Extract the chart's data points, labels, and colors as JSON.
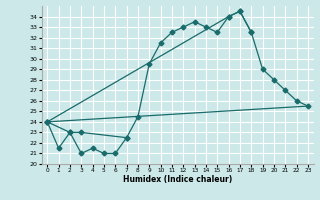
{
  "xlabel": "Humidex (Indice chaleur)",
  "bg_color": "#cce8e8",
  "grid_color": "#ffffff",
  "line_color": "#1a6b6b",
  "xlim": [
    -0.5,
    23.5
  ],
  "ylim": [
    20,
    35
  ],
  "yticks": [
    20,
    21,
    22,
    23,
    24,
    25,
    26,
    27,
    28,
    29,
    30,
    31,
    32,
    33,
    34
  ],
  "xticks": [
    0,
    1,
    2,
    3,
    4,
    5,
    6,
    7,
    8,
    9,
    10,
    11,
    12,
    13,
    14,
    15,
    16,
    17,
    18,
    19,
    20,
    21,
    22,
    23
  ],
  "line1_x": [
    0,
    1,
    2,
    3,
    4,
    5,
    6,
    7
  ],
  "line1_y": [
    24.0,
    21.5,
    23.0,
    21.0,
    21.5,
    21.0,
    21.0,
    22.5
  ],
  "line2_x": [
    0,
    2,
    3,
    7,
    8,
    9,
    10,
    11,
    12,
    13,
    14,
    15,
    16,
    17,
    18
  ],
  "line2_y": [
    24.0,
    23.0,
    23.0,
    22.5,
    24.5,
    29.5,
    31.5,
    32.5,
    33.0,
    33.5,
    33.0,
    32.5,
    34.0,
    34.5,
    32.5
  ],
  "line3_x": [
    0,
    16,
    17,
    18,
    19,
    20,
    21,
    22,
    23
  ],
  "line3_y": [
    24.0,
    34.0,
    34.5,
    32.5,
    29.0,
    28.0,
    27.0,
    26.0,
    25.5
  ],
  "line4_x": [
    0,
    23
  ],
  "line4_y": [
    24.0,
    25.5
  ]
}
